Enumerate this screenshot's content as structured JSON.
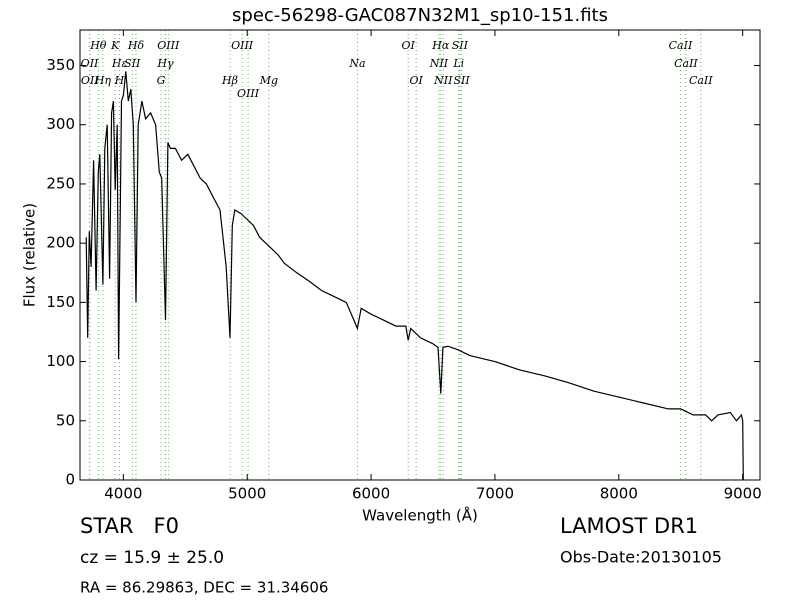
{
  "chart_data": {
    "type": "line",
    "title": "spec-56298-GAC087N32M1_sp10-151.fits",
    "x_label": "Wavelength (Å)",
    "y_label": "Flux (relative)",
    "x": [
      3700,
      3712,
      3725,
      3740,
      3760,
      3780,
      3798,
      3810,
      3835,
      3850,
      3870,
      3889,
      3905,
      3920,
      3934,
      3950,
      3962,
      3985,
      4000,
      4020,
      4040,
      4060,
      4080,
      4102,
      4120,
      4150,
      4180,
      4220,
      4260,
      4290,
      4310,
      4340,
      4360,
      4380,
      4420,
      4470,
      4520,
      4570,
      4620,
      4670,
      4720,
      4780,
      4830,
      4861,
      4880,
      4900,
      4950,
      5000,
      5050,
      5100,
      5150,
      5200,
      5250,
      5300,
      5400,
      5500,
      5600,
      5700,
      5800,
      5890,
      5920,
      6000,
      6100,
      6200,
      6280,
      6300,
      6320,
      6400,
      6500,
      6540,
      6563,
      6580,
      6620,
      6700,
      6800,
      7000,
      7200,
      7400,
      7600,
      7800,
      8000,
      8200,
      8400,
      8500,
      8600,
      8700,
      8750,
      8800,
      8900,
      8950,
      8990,
      9000,
      9005
    ],
    "values": [
      205,
      120,
      210,
      180,
      270,
      160,
      260,
      275,
      165,
      280,
      300,
      170,
      310,
      320,
      245,
      300,
      102,
      320,
      325,
      345,
      320,
      330,
      300,
      150,
      300,
      320,
      305,
      310,
      300,
      260,
      255,
      135,
      285,
      280,
      280,
      270,
      275,
      265,
      255,
      250,
      240,
      228,
      180,
      120,
      215,
      228,
      225,
      220,
      215,
      205,
      200,
      195,
      190,
      183,
      175,
      168,
      160,
      155,
      150,
      128,
      145,
      140,
      135,
      130,
      130,
      118,
      128,
      120,
      115,
      112,
      73,
      112,
      113,
      110,
      105,
      100,
      93,
      88,
      82,
      75,
      70,
      65,
      60,
      60,
      55,
      55,
      50,
      55,
      57,
      50,
      55,
      50,
      0
    ],
    "color": "#000000",
    "xlim": [
      3650,
      9140
    ],
    "ylim": [
      0,
      380
    ],
    "xticks": [
      4000,
      5000,
      6000,
      7000,
      8000,
      9000
    ],
    "yticks": [
      0,
      50,
      100,
      150,
      200,
      250,
      300,
      350
    ],
    "spectral_line_color": "#5cb85c",
    "spectral_lines": [
      {
        "label": "Hθ",
        "wavelength": 3798
      },
      {
        "label": "K",
        "wavelength": 3934
      },
      {
        "label": "Hδ",
        "wavelength": 4102
      },
      {
        "label": "OIII",
        "wavelength": 4363
      },
      {
        "label": "OIII",
        "wavelength": 4959
      },
      {
        "label": "OI",
        "wavelength": 6300
      },
      {
        "label": "Hα",
        "wavelength": 6563
      },
      {
        "label": "SII",
        "wavelength": 6717
      },
      {
        "label": "CaII",
        "wavelength": 8498
      },
      {
        "label": "OII",
        "wavelength": 3727
      },
      {
        "label": "Hε",
        "wavelength": 3970
      },
      {
        "label": "SII",
        "wavelength": 4072
      },
      {
        "label": "Hγ",
        "wavelength": 4340
      },
      {
        "label": "Na",
        "wavelength": 5890
      },
      {
        "label": "NII",
        "wavelength": 6548
      },
      {
        "label": "Li",
        "wavelength": 6708
      },
      {
        "label": "CaII",
        "wavelength": 8542
      },
      {
        "label": "OII",
        "wavelength": 3729
      },
      {
        "label": "Hη",
        "wavelength": 3835
      },
      {
        "label": "H",
        "wavelength": 3968
      },
      {
        "label": "G",
        "wavelength": 4304
      },
      {
        "label": "Hβ",
        "wavelength": 4861
      },
      {
        "label": "Mg",
        "wavelength": 5175
      },
      {
        "label": "OI",
        "wavelength": 6364
      },
      {
        "label": "NII",
        "wavelength": 6583
      },
      {
        "label": "SII",
        "wavelength": 6731
      },
      {
        "label": "CaII",
        "wavelength": 8662
      },
      {
        "label": "OIII",
        "wavelength": 5007
      }
    ],
    "object_class": "STAR   F0",
    "survey": "LAMOST DR1",
    "redshift": "cz = 15.9 ± 25.0",
    "obs_date": "Obs-Date:20130105",
    "coordinates": "RA = 86.29863, DEC = 31.34606"
  }
}
